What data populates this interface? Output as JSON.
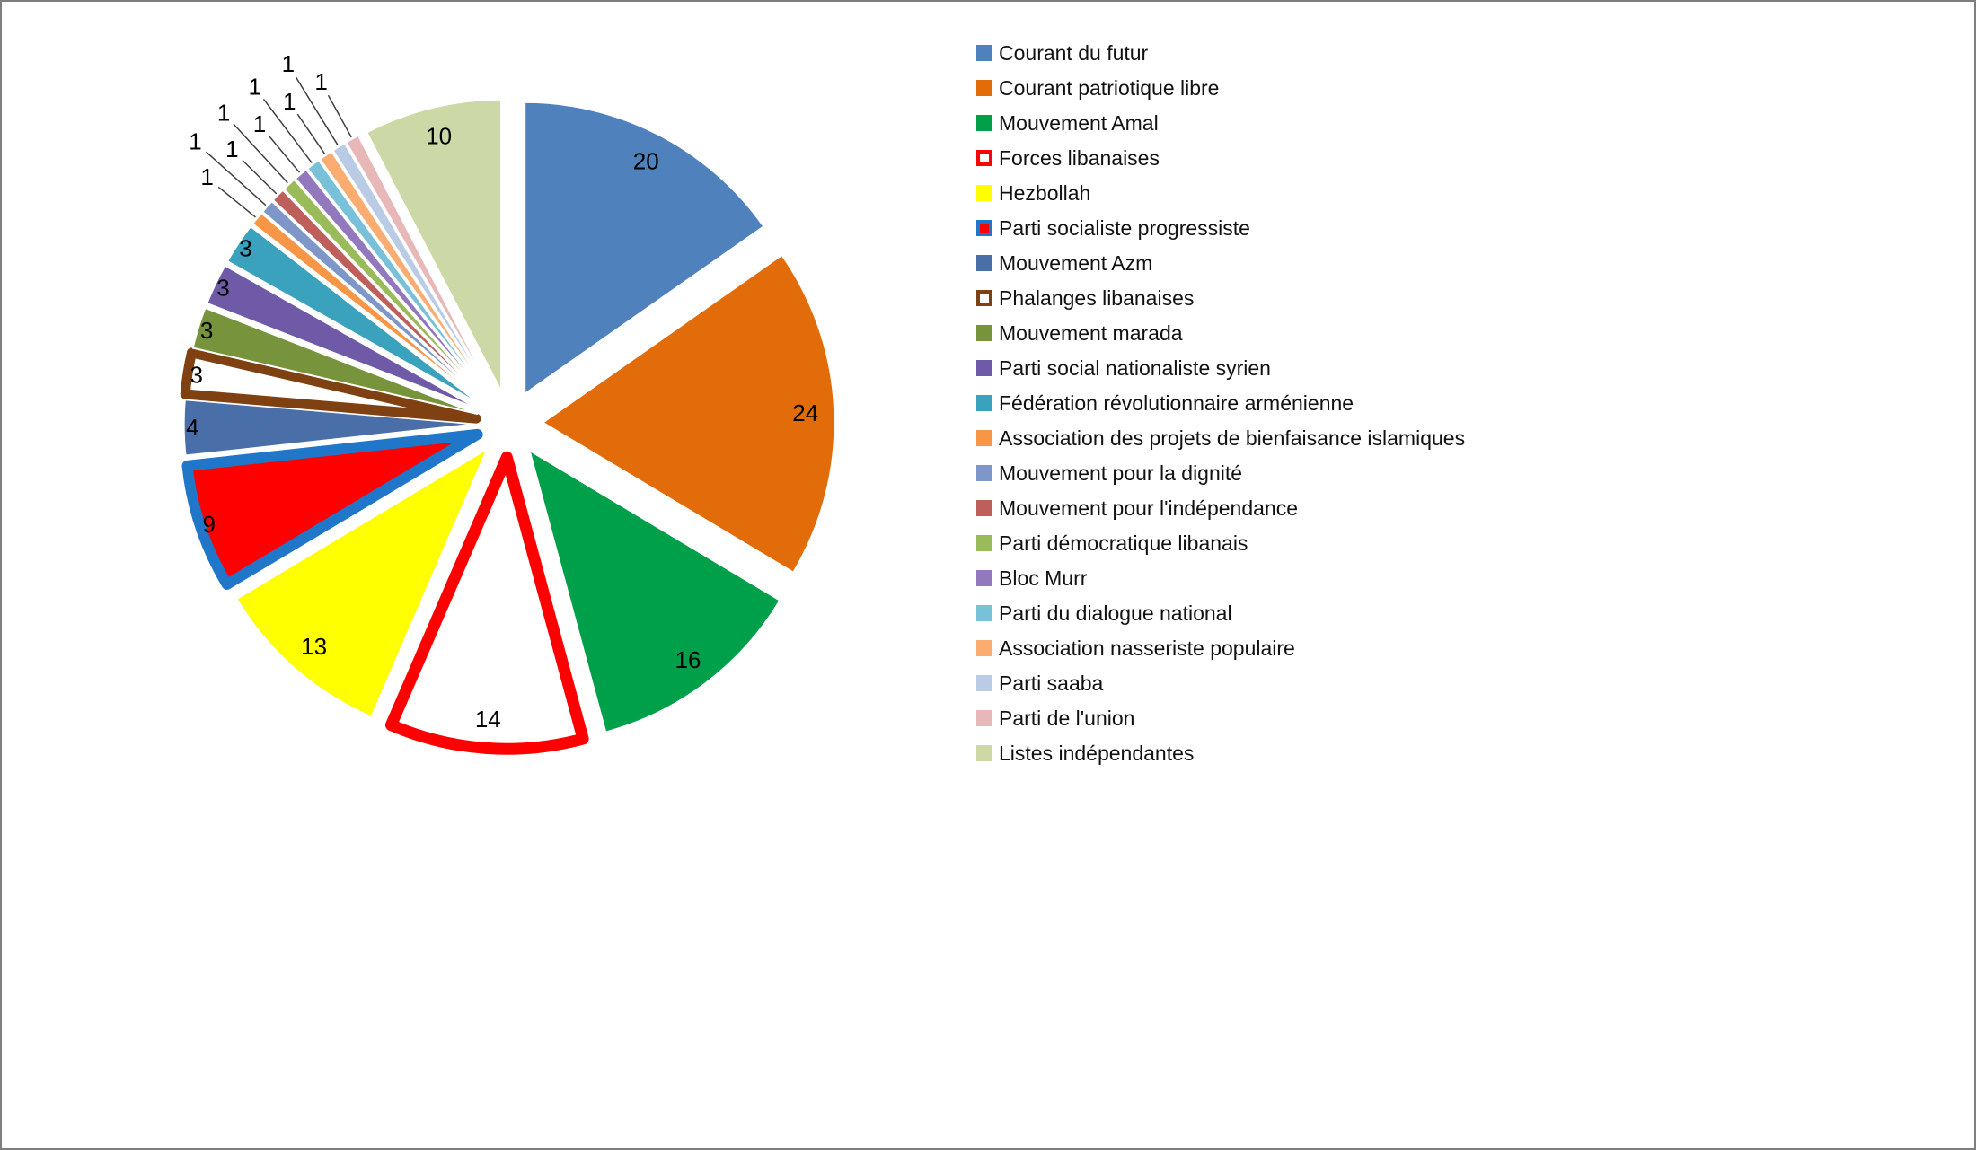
{
  "chart_data": {
    "type": "pie",
    "title": "",
    "legend_position": "right",
    "start_angle_deg": 0,
    "direction": "clockwise",
    "explode_fraction": 0.115,
    "total": 131,
    "slices": [
      {
        "label": "Courant du futur",
        "value": 20,
        "color": "#4F81BD"
      },
      {
        "label": "Courant patriotique libre",
        "value": 24,
        "color": "#E26B0A"
      },
      {
        "label": "Mouvement Amal",
        "value": 16,
        "color": "#00A04A"
      },
      {
        "label": "Forces libanaises",
        "value": 14,
        "color": "#FFFFFF",
        "border": "#FE0000",
        "border_width": 13
      },
      {
        "label": "Hezbollah",
        "value": 13,
        "color": "#FFFF00"
      },
      {
        "label": "Parti socialiste progressiste",
        "value": 9,
        "color": "#FE0000",
        "border": "#2076C8",
        "border_width": 12
      },
      {
        "label": "Mouvement Azm",
        "value": 4,
        "color": "#4A6FA8"
      },
      {
        "label": "Phalanges libanaises",
        "value": 3,
        "color": "#FFFFFF",
        "border": "#7F4012",
        "border_width": 11
      },
      {
        "label": "Mouvement marada",
        "value": 3,
        "color": "#77933C"
      },
      {
        "label": "Parti social nationaliste syrien",
        "value": 3,
        "color": "#6F5AA8"
      },
      {
        "label": "Fédération révolutionnaire arménienne",
        "value": 3,
        "color": "#3AA2BC"
      },
      {
        "label": "Association des projets de bienfaisance islamiques",
        "value": 1,
        "color": "#F79646"
      },
      {
        "label": "Mouvement pour la dignité",
        "value": 1,
        "color": "#7E96C8"
      },
      {
        "label": "Mouvement pour l'indépendance",
        "value": 1,
        "color": "#BE5F5C"
      },
      {
        "label": "Parti démocratique libanais",
        "value": 1,
        "color": "#9ABB59"
      },
      {
        "label": "Bloc Murr",
        "value": 1,
        "color": "#9279BE"
      },
      {
        "label": "Parti du dialogue national",
        "value": 1,
        "color": "#79C1D8"
      },
      {
        "label": "Association nasseriste populaire",
        "value": 1,
        "color": "#FBAC70"
      },
      {
        "label": "Parti saaba",
        "value": 1,
        "color": "#B9CBE5"
      },
      {
        "label": "Parti de l'union",
        "value": 1,
        "color": "#E7B8B7"
      },
      {
        "label": "Listes indépendantes",
        "value": 10,
        "color": "#CCD9A6"
      }
    ]
  }
}
